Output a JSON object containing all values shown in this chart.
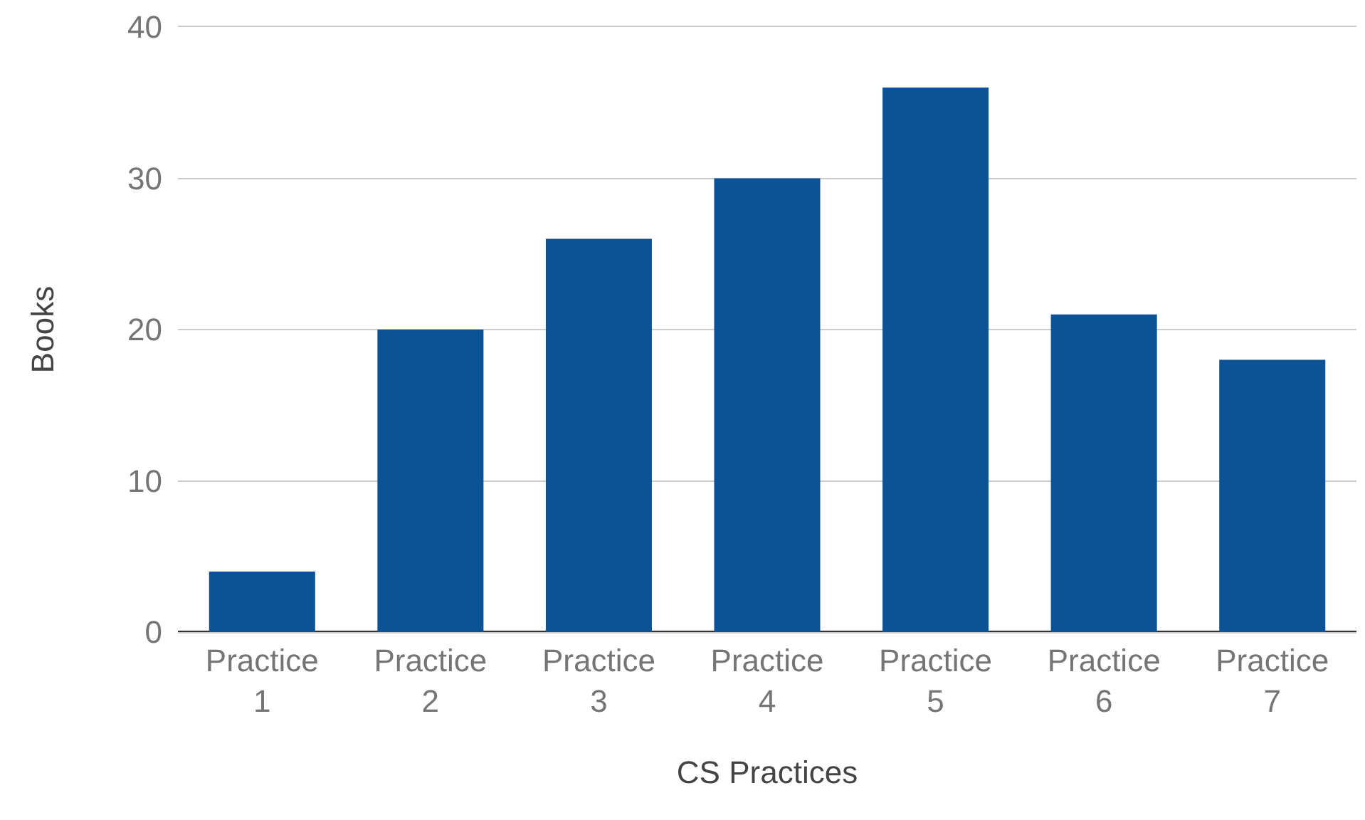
{
  "chart_data": {
    "type": "bar",
    "xlabel": "CS Practices",
    "ylabel": "Books",
    "categories": [
      "Practice 1",
      "Practice 2",
      "Practice 3",
      "Practice 4",
      "Practice 5",
      "Practice 6",
      "Practice 7"
    ],
    "values": [
      4,
      20,
      26,
      30,
      36,
      21,
      18
    ],
    "color": "#0b5394",
    "ylim": [
      0,
      40
    ],
    "yticks": [
      0,
      10,
      20,
      30,
      40
    ],
    "grid": "y"
  }
}
